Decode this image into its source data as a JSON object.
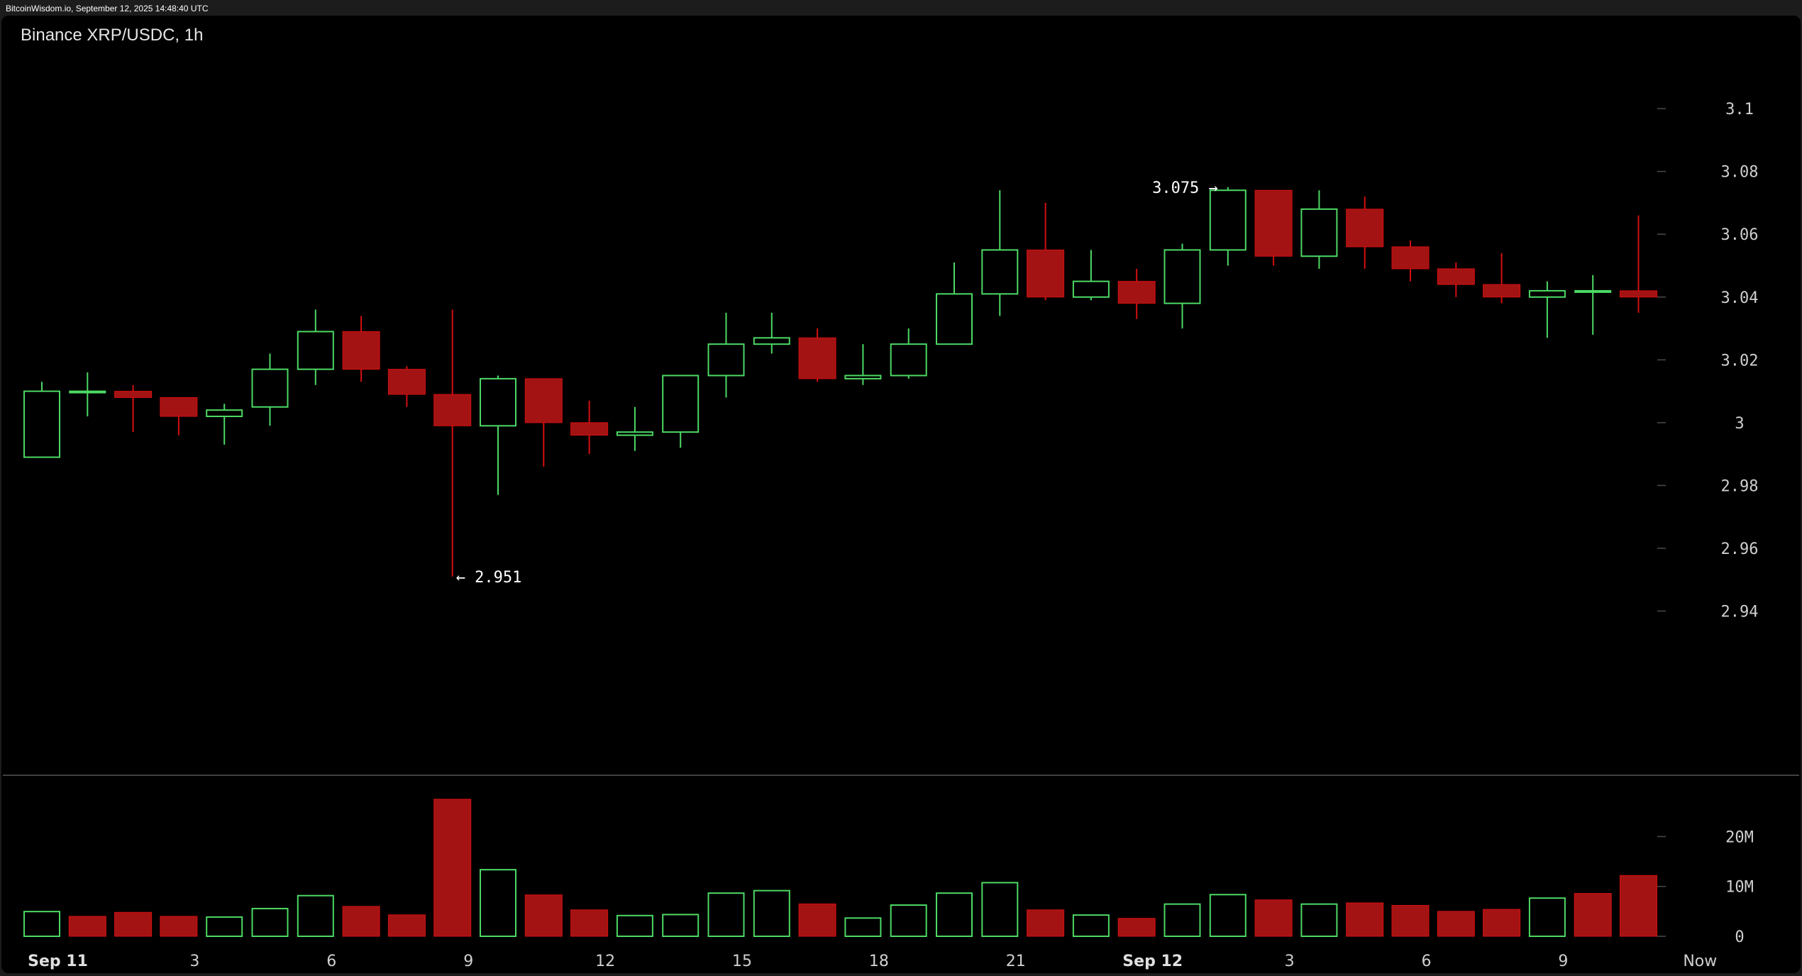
{
  "header": {
    "watermark": "BitcoinWisdom.io, September 12, 2025 14:48:40 UTC",
    "title": "Binance XRP/USDC, 1h"
  },
  "colors": {
    "up": "#4cd964",
    "down": "#d40f0f",
    "down_fill": "#a31313",
    "background": "#000000",
    "text": "#e6e6e6",
    "tick": "#4a4a4a",
    "divider": "#555555"
  },
  "chart_data": [
    {
      "type": "candlestick",
      "title": "Binance XRP/USDC, 1h",
      "y_ticks": [
        "3.1",
        "3.08",
        "3.06",
        "3.04",
        "3.02",
        "3",
        "2.98",
        "2.96",
        "2.94"
      ],
      "y_tick_values": [
        3.1,
        3.08,
        3.06,
        3.04,
        3.02,
        3.0,
        2.98,
        2.96,
        2.94
      ],
      "ylim": [
        2.9243,
        3.1163
      ],
      "x_labels": [
        {
          "label": "Sep 11",
          "index": 1.35,
          "bold": true
        },
        {
          "label": "3",
          "index": 4.35,
          "bold": false
        },
        {
          "label": "6",
          "index": 7.35,
          "bold": false
        },
        {
          "label": "9",
          "index": 10.35,
          "bold": false
        },
        {
          "label": "12",
          "index": 13.35,
          "bold": false
        },
        {
          "label": "15",
          "index": 16.35,
          "bold": false
        },
        {
          "label": "18",
          "index": 19.35,
          "bold": false
        },
        {
          "label": "21",
          "index": 22.35,
          "bold": false
        },
        {
          "label": "Sep 12",
          "index": 25.35,
          "bold": true
        },
        {
          "label": "3",
          "index": 28.35,
          "bold": false
        },
        {
          "label": "6",
          "index": 31.35,
          "bold": false
        },
        {
          "label": "9",
          "index": 34.35,
          "bold": false
        },
        {
          "label": "Now",
          "index": 37.35,
          "bold": false
        }
      ],
      "annotations": [
        {
          "text": "← 2.951",
          "candle": 9,
          "price": 2.951,
          "side": "right"
        },
        {
          "text": "3.075 →",
          "candle": 26,
          "price": 3.075,
          "side": "left"
        }
      ],
      "candles": [
        {
          "o": 2.989,
          "h": 3.013,
          "l": 2.989,
          "c": 3.01
        },
        {
          "o": 3.01,
          "h": 3.016,
          "l": 3.002,
          "c": 3.01
        },
        {
          "o": 3.01,
          "h": 3.012,
          "l": 2.997,
          "c": 3.008
        },
        {
          "o": 3.008,
          "h": 3.008,
          "l": 2.996,
          "c": 3.002
        },
        {
          "o": 3.002,
          "h": 3.006,
          "l": 2.993,
          "c": 3.004
        },
        {
          "o": 3.005,
          "h": 3.022,
          "l": 2.999,
          "c": 3.017
        },
        {
          "o": 3.017,
          "h": 3.036,
          "l": 3.012,
          "c": 3.029
        },
        {
          "o": 3.029,
          "h": 3.034,
          "l": 3.013,
          "c": 3.017
        },
        {
          "o": 3.017,
          "h": 3.018,
          "l": 3.005,
          "c": 3.009
        },
        {
          "o": 3.009,
          "h": 3.036,
          "l": 2.951,
          "c": 2.999
        },
        {
          "o": 2.999,
          "h": 3.015,
          "l": 2.977,
          "c": 3.014
        },
        {
          "o": 3.014,
          "h": 3.014,
          "l": 2.986,
          "c": 3.0
        },
        {
          "o": 3.0,
          "h": 3.007,
          "l": 2.99,
          "c": 2.996
        },
        {
          "o": 2.996,
          "h": 3.005,
          "l": 2.991,
          "c": 2.997
        },
        {
          "o": 2.997,
          "h": 3.015,
          "l": 2.992,
          "c": 3.015
        },
        {
          "o": 3.015,
          "h": 3.035,
          "l": 3.008,
          "c": 3.025
        },
        {
          "o": 3.025,
          "h": 3.035,
          "l": 3.022,
          "c": 3.027
        },
        {
          "o": 3.027,
          "h": 3.03,
          "l": 3.013,
          "c": 3.014
        },
        {
          "o": 3.014,
          "h": 3.025,
          "l": 3.012,
          "c": 3.015
        },
        {
          "o": 3.015,
          "h": 3.03,
          "l": 3.014,
          "c": 3.025
        },
        {
          "o": 3.025,
          "h": 3.051,
          "l": 3.025,
          "c": 3.041
        },
        {
          "o": 3.041,
          "h": 3.074,
          "l": 3.034,
          "c": 3.055
        },
        {
          "o": 3.055,
          "h": 3.07,
          "l": 3.039,
          "c": 3.04
        },
        {
          "o": 3.04,
          "h": 3.055,
          "l": 3.039,
          "c": 3.045
        },
        {
          "o": 3.045,
          "h": 3.049,
          "l": 3.033,
          "c": 3.038
        },
        {
          "o": 3.038,
          "h": 3.057,
          "l": 3.03,
          "c": 3.055
        },
        {
          "o": 3.055,
          "h": 3.075,
          "l": 3.05,
          "c": 3.074
        },
        {
          "o": 3.074,
          "h": 3.074,
          "l": 3.05,
          "c": 3.053
        },
        {
          "o": 3.053,
          "h": 3.074,
          "l": 3.049,
          "c": 3.068
        },
        {
          "o": 3.068,
          "h": 3.072,
          "l": 3.049,
          "c": 3.056
        },
        {
          "o": 3.056,
          "h": 3.058,
          "l": 3.045,
          "c": 3.049
        },
        {
          "o": 3.049,
          "h": 3.051,
          "l": 3.04,
          "c": 3.044
        },
        {
          "o": 3.044,
          "h": 3.054,
          "l": 3.038,
          "c": 3.04
        },
        {
          "o": 3.04,
          "h": 3.045,
          "l": 3.027,
          "c": 3.042
        },
        {
          "o": 3.042,
          "h": 3.047,
          "l": 3.028,
          "c": 3.042
        },
        {
          "o": 3.042,
          "h": 3.066,
          "l": 3.035,
          "c": 3.04
        }
      ]
    },
    {
      "type": "bar",
      "title": "",
      "y_ticks": [
        "20M",
        "10M",
        "0"
      ],
      "y_tick_values": [
        20,
        10,
        0
      ],
      "ylim": [
        0,
        29.6
      ],
      "unit": "M",
      "values": [
        5.1,
        4.0,
        4.8,
        4.0,
        4.0,
        5.7,
        8.3,
        6.0,
        4.3,
        27.5,
        13.5,
        8.3,
        5.3,
        4.3,
        4.5,
        8.8,
        9.3,
        6.5,
        3.8,
        6.4,
        8.8,
        10.9,
        5.3,
        4.4,
        3.6,
        6.6,
        8.5,
        7.3,
        6.6,
        6.7,
        6.2,
        5.0,
        5.4,
        7.8,
        8.6,
        12.2
      ],
      "directions": [
        "up",
        "down",
        "down",
        "down",
        "up",
        "up",
        "up",
        "down",
        "down",
        "down",
        "up",
        "down",
        "down",
        "up",
        "up",
        "up",
        "up",
        "down",
        "up",
        "up",
        "up",
        "up",
        "down",
        "up",
        "down",
        "up",
        "up",
        "down",
        "up",
        "down",
        "down",
        "down",
        "down",
        "up",
        "down",
        "down"
      ]
    }
  ]
}
